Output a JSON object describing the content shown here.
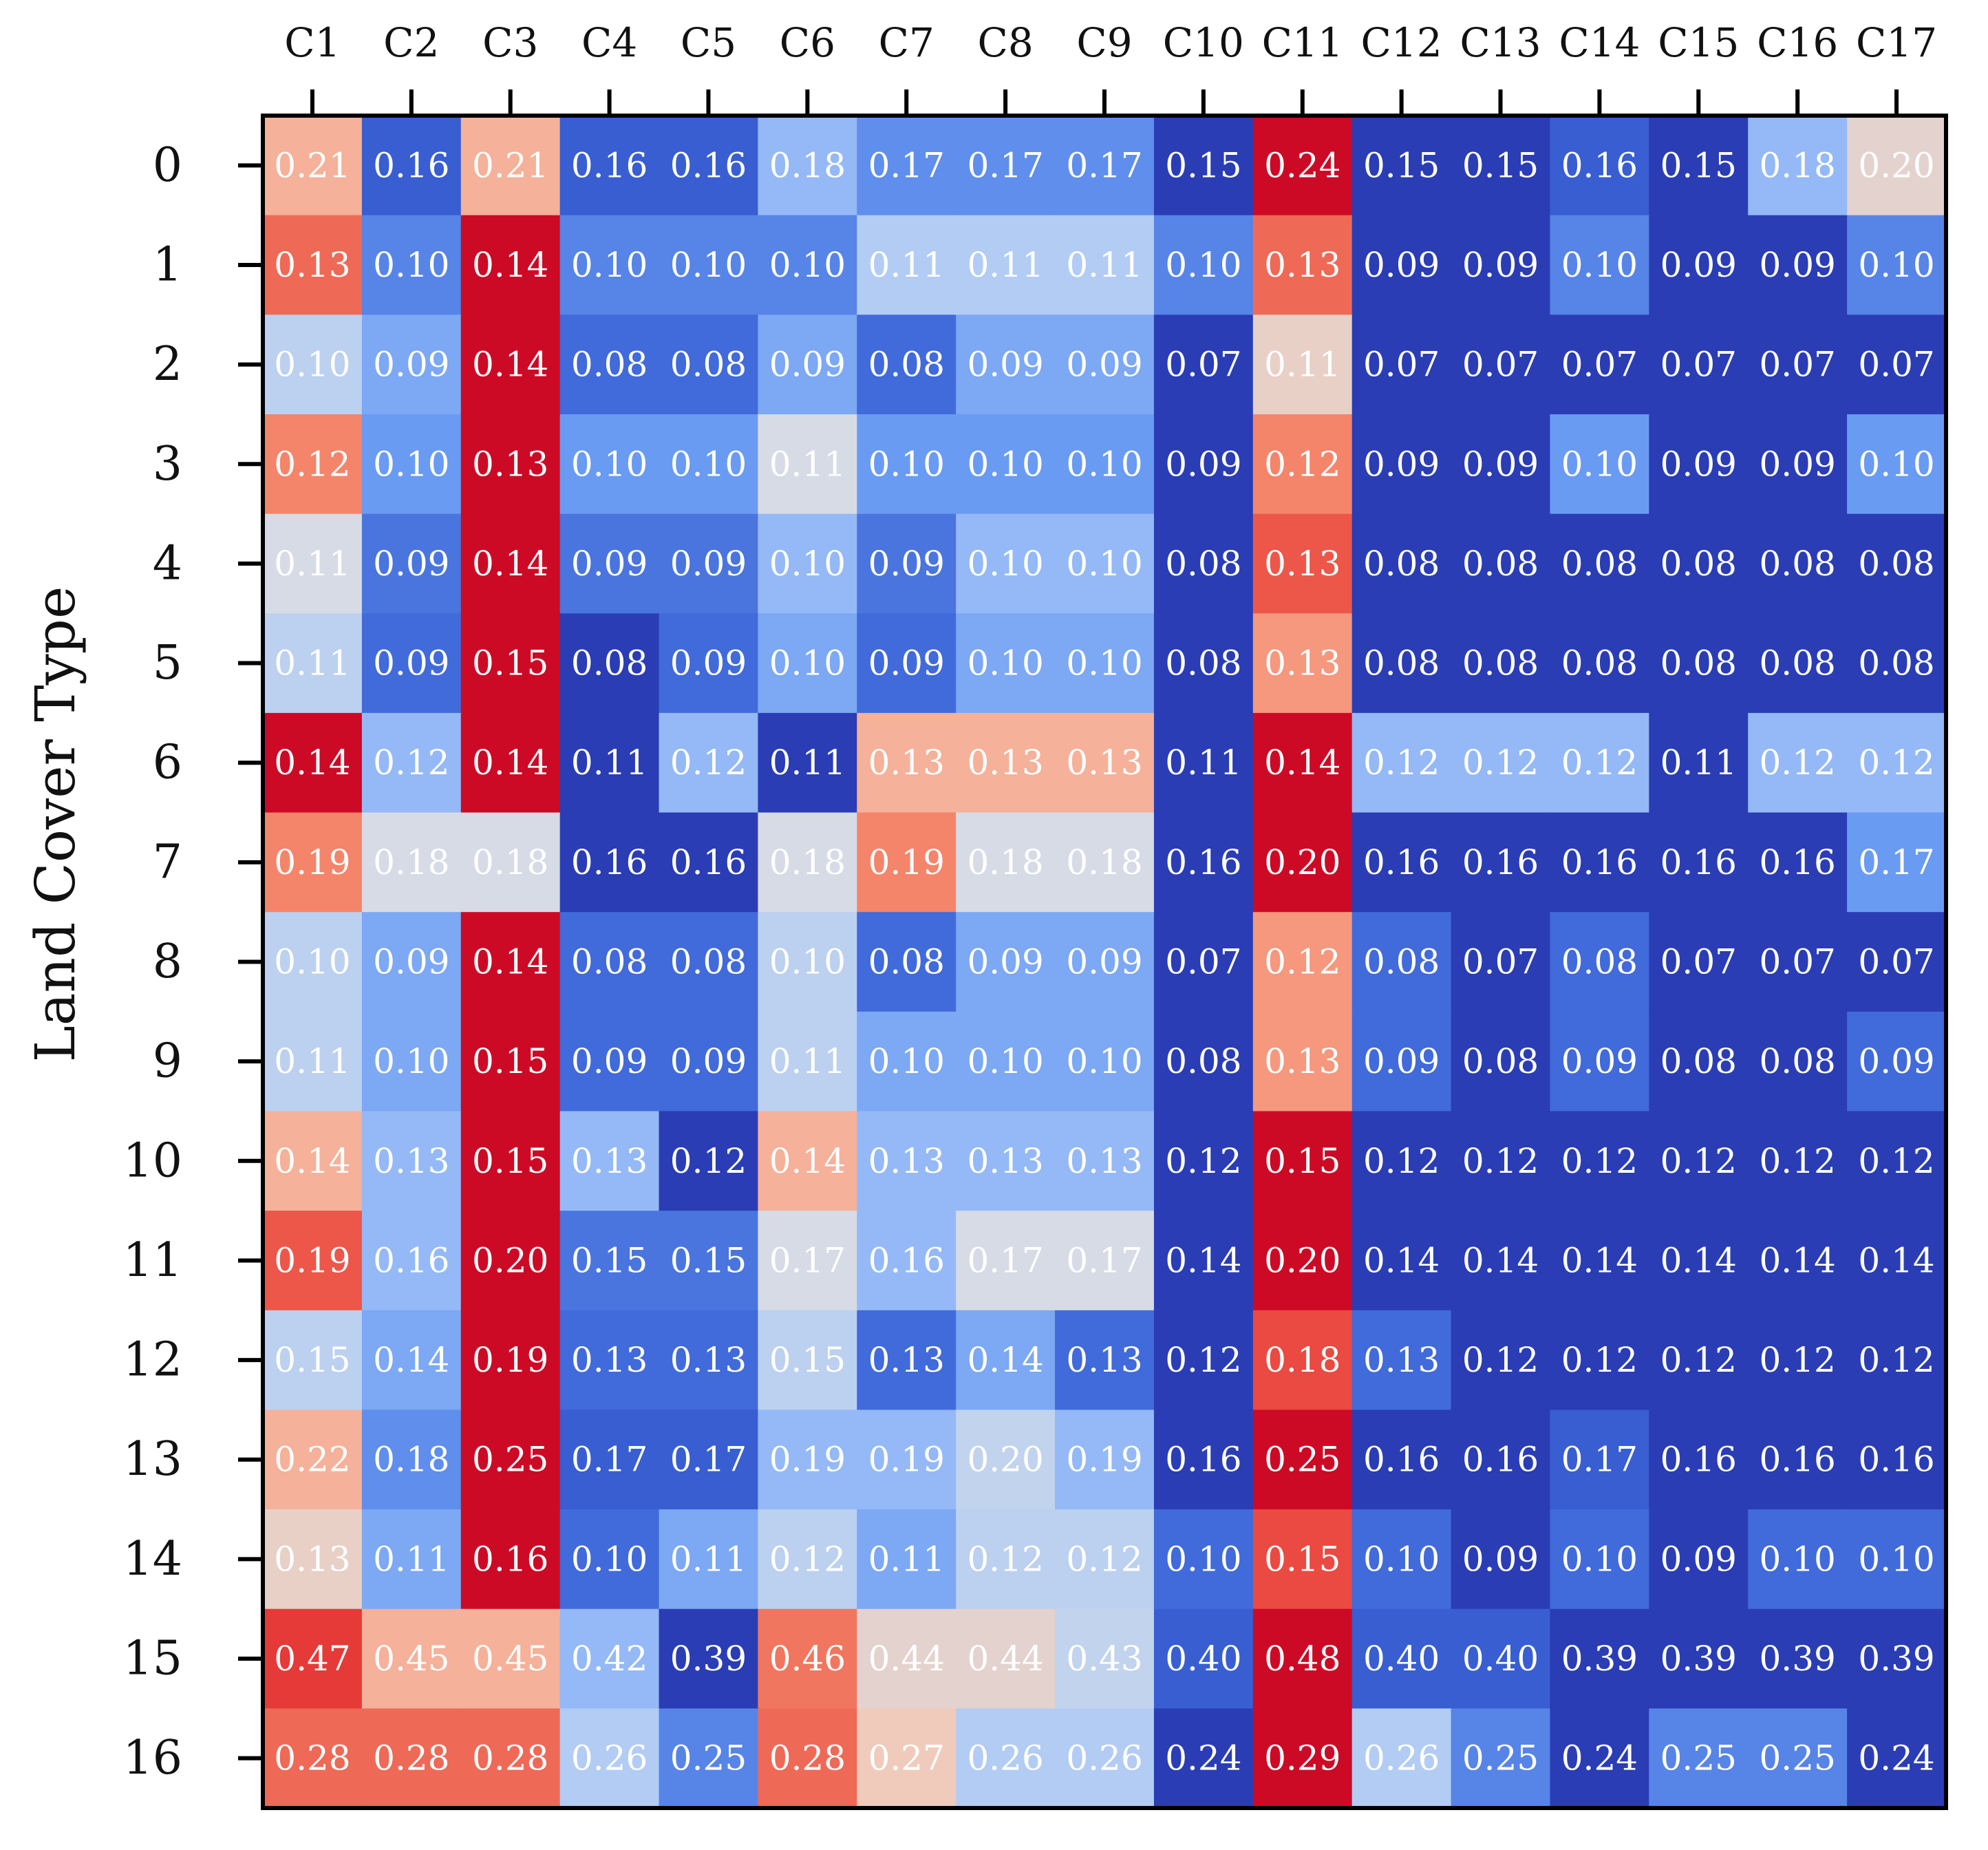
{
  "chart_data": {
    "type": "heatmap",
    "title": "",
    "xlabel": "",
    "ylabel": "Land Cover Type",
    "columns": [
      "C1",
      "C2",
      "C3",
      "C4",
      "C5",
      "C6",
      "C7",
      "C8",
      "C9",
      "C10",
      "C11",
      "C12",
      "C13",
      "C14",
      "C15",
      "C16",
      "C17"
    ],
    "rows": [
      "0",
      "1",
      "2",
      "3",
      "4",
      "5",
      "6",
      "7",
      "8",
      "9",
      "10",
      "11",
      "12",
      "13",
      "14",
      "15",
      "16"
    ],
    "values": [
      [
        "0.21",
        "0.16",
        "0.21",
        "0.16",
        "0.16",
        "0.18",
        "0.17",
        "0.17",
        "0.17",
        "0.15",
        "0.24",
        "0.15",
        "0.15",
        "0.16",
        "0.15",
        "0.18",
        "0.20"
      ],
      [
        "0.13",
        "0.10",
        "0.14",
        "0.10",
        "0.10",
        "0.10",
        "0.11",
        "0.11",
        "0.11",
        "0.10",
        "0.13",
        "0.09",
        "0.09",
        "0.10",
        "0.09",
        "0.09",
        "0.10"
      ],
      [
        "0.10",
        "0.09",
        "0.14",
        "0.08",
        "0.08",
        "0.09",
        "0.08",
        "0.09",
        "0.09",
        "0.07",
        "0.11",
        "0.07",
        "0.07",
        "0.07",
        "0.07",
        "0.07",
        "0.07"
      ],
      [
        "0.12",
        "0.10",
        "0.13",
        "0.10",
        "0.10",
        "0.11",
        "0.10",
        "0.10",
        "0.10",
        "0.09",
        "0.12",
        "0.09",
        "0.09",
        "0.10",
        "0.09",
        "0.09",
        "0.10"
      ],
      [
        "0.11",
        "0.09",
        "0.14",
        "0.09",
        "0.09",
        "0.10",
        "0.09",
        "0.10",
        "0.10",
        "0.08",
        "0.13",
        "0.08",
        "0.08",
        "0.08",
        "0.08",
        "0.08",
        "0.08"
      ],
      [
        "0.11",
        "0.09",
        "0.15",
        "0.08",
        "0.09",
        "0.10",
        "0.09",
        "0.10",
        "0.10",
        "0.08",
        "0.13",
        "0.08",
        "0.08",
        "0.08",
        "0.08",
        "0.08",
        "0.08"
      ],
      [
        "0.14",
        "0.12",
        "0.14",
        "0.11",
        "0.12",
        "0.11",
        "0.13",
        "0.13",
        "0.13",
        "0.11",
        "0.14",
        "0.12",
        "0.12",
        "0.12",
        "0.11",
        "0.12",
        "0.12"
      ],
      [
        "0.19",
        "0.18",
        "0.18",
        "0.16",
        "0.16",
        "0.18",
        "0.19",
        "0.18",
        "0.18",
        "0.16",
        "0.20",
        "0.16",
        "0.16",
        "0.16",
        "0.16",
        "0.16",
        "0.17"
      ],
      [
        "0.10",
        "0.09",
        "0.14",
        "0.08",
        "0.08",
        "0.10",
        "0.08",
        "0.09",
        "0.09",
        "0.07",
        "0.12",
        "0.08",
        "0.07",
        "0.08",
        "0.07",
        "0.07",
        "0.07"
      ],
      [
        "0.11",
        "0.10",
        "0.15",
        "0.09",
        "0.09",
        "0.11",
        "0.10",
        "0.10",
        "0.10",
        "0.08",
        "0.13",
        "0.09",
        "0.08",
        "0.09",
        "0.08",
        "0.08",
        "0.09"
      ],
      [
        "0.14",
        "0.13",
        "0.15",
        "0.13",
        "0.12",
        "0.14",
        "0.13",
        "0.13",
        "0.13",
        "0.12",
        "0.15",
        "0.12",
        "0.12",
        "0.12",
        "0.12",
        "0.12",
        "0.12"
      ],
      [
        "0.19",
        "0.16",
        "0.20",
        "0.15",
        "0.15",
        "0.17",
        "0.16",
        "0.17",
        "0.17",
        "0.14",
        "0.20",
        "0.14",
        "0.14",
        "0.14",
        "0.14",
        "0.14",
        "0.14"
      ],
      [
        "0.15",
        "0.14",
        "0.19",
        "0.13",
        "0.13",
        "0.15",
        "0.13",
        "0.14",
        "0.13",
        "0.12",
        "0.18",
        "0.13",
        "0.12",
        "0.12",
        "0.12",
        "0.12",
        "0.12"
      ],
      [
        "0.22",
        "0.18",
        "0.25",
        "0.17",
        "0.17",
        "0.19",
        "0.19",
        "0.20",
        "0.19",
        "0.16",
        "0.25",
        "0.16",
        "0.16",
        "0.17",
        "0.16",
        "0.16",
        "0.16"
      ],
      [
        "0.13",
        "0.11",
        "0.16",
        "0.10",
        "0.11",
        "0.12",
        "0.11",
        "0.12",
        "0.12",
        "0.10",
        "0.15",
        "0.10",
        "0.09",
        "0.10",
        "0.09",
        "0.10",
        "0.10"
      ],
      [
        "0.47",
        "0.45",
        "0.45",
        "0.42",
        "0.39",
        "0.46",
        "0.44",
        "0.44",
        "0.43",
        "0.40",
        "0.48",
        "0.40",
        "0.40",
        "0.39",
        "0.39",
        "0.39",
        "0.39"
      ],
      [
        "0.28",
        "0.28",
        "0.28",
        "0.26",
        "0.25",
        "0.28",
        "0.27",
        "0.26",
        "0.26",
        "0.24",
        "0.29",
        "0.26",
        "0.25",
        "0.24",
        "0.25",
        "0.25",
        "0.24"
      ]
    ],
    "colormap": {
      "name": "coolwarm (row-relative)",
      "stops": [
        "#2a3db5",
        "#3a62d6",
        "#6a9bf2",
        "#a9c8f8",
        "#d6dbe6",
        "#f6c7b0",
        "#f4856a",
        "#e8403a",
        "#cc0a26"
      ]
    },
    "grid": false,
    "legend": "none"
  }
}
